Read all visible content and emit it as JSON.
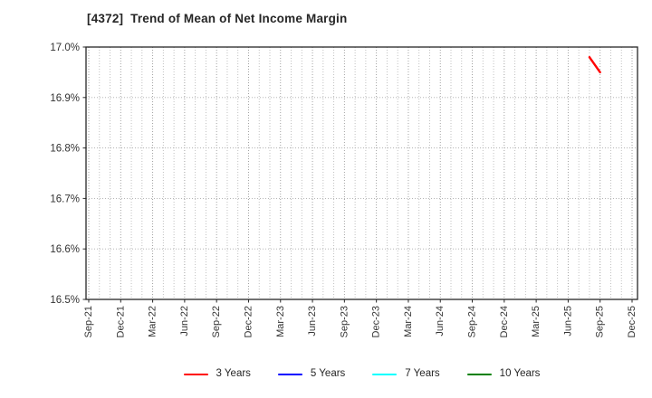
{
  "header": {
    "title": "[4372]  Trend of Mean of Net Income Margin"
  },
  "chart_data": {
    "type": "line",
    "title": "[4372]  Trend of Mean of Net Income Margin",
    "x_axis": {
      "tick_labels": [
        "Sep-21",
        "Dec-21",
        "Mar-22",
        "Jun-22",
        "Sep-22",
        "Dec-22",
        "Mar-23",
        "Jun-23",
        "Sep-23",
        "Dec-23",
        "Mar-24",
        "Jun-24",
        "Sep-24",
        "Dec-24",
        "Mar-25",
        "Jun-25",
        "Sep-25",
        "Dec-25"
      ],
      "minor_grid": "monthly",
      "label_rotation_deg": 90
    },
    "y_axis": {
      "ticks": [
        16.5,
        16.6,
        16.7,
        16.8,
        16.9,
        17.0
      ],
      "tick_labels": [
        "16.5%",
        "16.6%",
        "16.7%",
        "16.8%",
        "16.9%",
        "17.0%"
      ],
      "range": [
        16.5,
        17.0
      ],
      "unit": "%"
    },
    "grid": true,
    "legend_position": "bottom-center",
    "series": [
      {
        "name": "3 Years",
        "color": "#ff0000",
        "points": [
          {
            "x": "Aug-25",
            "y": 16.98
          },
          {
            "x": "Sep-25",
            "y": 16.95
          }
        ]
      },
      {
        "name": "5 Years",
        "color": "#0000ff",
        "points": []
      },
      {
        "name": "7 Years",
        "color": "#00ffff",
        "points": []
      },
      {
        "name": "10 Years",
        "color": "#008000",
        "points": []
      }
    ],
    "style_colors": {
      "axis_border": "#262626",
      "grid_major": "#999999",
      "grid_minor": "#bbbbbb",
      "tick_label": "#333333"
    }
  }
}
